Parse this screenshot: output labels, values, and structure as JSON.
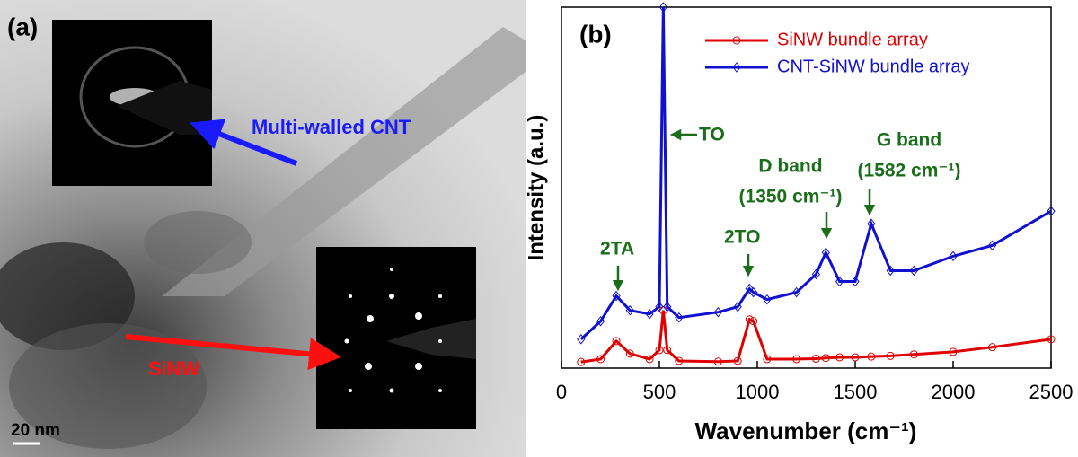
{
  "panel_a": {
    "label": "(a)",
    "cnt_label": "Multi-walled CNT",
    "sinw_label": "SiNW",
    "scale_bar": "20 nm"
  },
  "chart_data": {
    "type": "line",
    "panel_label": "(b)",
    "x_label": "Wavenumber (cm⁻¹)",
    "y_label": "Intensity (a.u.)",
    "x": [
      100,
      200,
      280,
      350,
      450,
      500,
      520,
      540,
      600,
      800,
      900,
      960,
      980,
      1050,
      1200,
      1300,
      1350,
      1420,
      1500,
      1582,
      1680,
      1800,
      2000,
      2200,
      2500
    ],
    "series": [
      {
        "name": "SiNW bundle array",
        "color": "#e00000",
        "marker": "circle",
        "values": [
          1.7,
          2.5,
          7.5,
          4,
          2.5,
          5,
          16,
          5,
          2,
          1.8,
          2,
          13.5,
          13,
          2.5,
          2.5,
          2.6,
          2.8,
          3,
          3,
          3.2,
          3.4,
          3.8,
          4.5,
          5.8,
          8
        ]
      },
      {
        "name": "CNT-SiNW bundle array",
        "color": "#1010d0",
        "marker": "diamond",
        "values": [
          8,
          13,
          20,
          16,
          15,
          17,
          100,
          17,
          14,
          15.5,
          17,
          22,
          21,
          19,
          21,
          26,
          32,
          24,
          24,
          40,
          27,
          27,
          31,
          34,
          43.5
        ]
      }
    ],
    "xlim": [
      0,
      2500
    ],
    "xticks": [
      0,
      500,
      1000,
      1500,
      2000,
      2500
    ],
    "ylim": [
      0,
      100
    ],
    "annotations": {
      "ta": "2TA",
      "to": "TO",
      "two_to": "2TO",
      "d_band": "D band",
      "d_pos": "(1350 cm⁻¹)",
      "g_band": "G band",
      "g_pos": "(1582 cm⁻¹)"
    }
  }
}
